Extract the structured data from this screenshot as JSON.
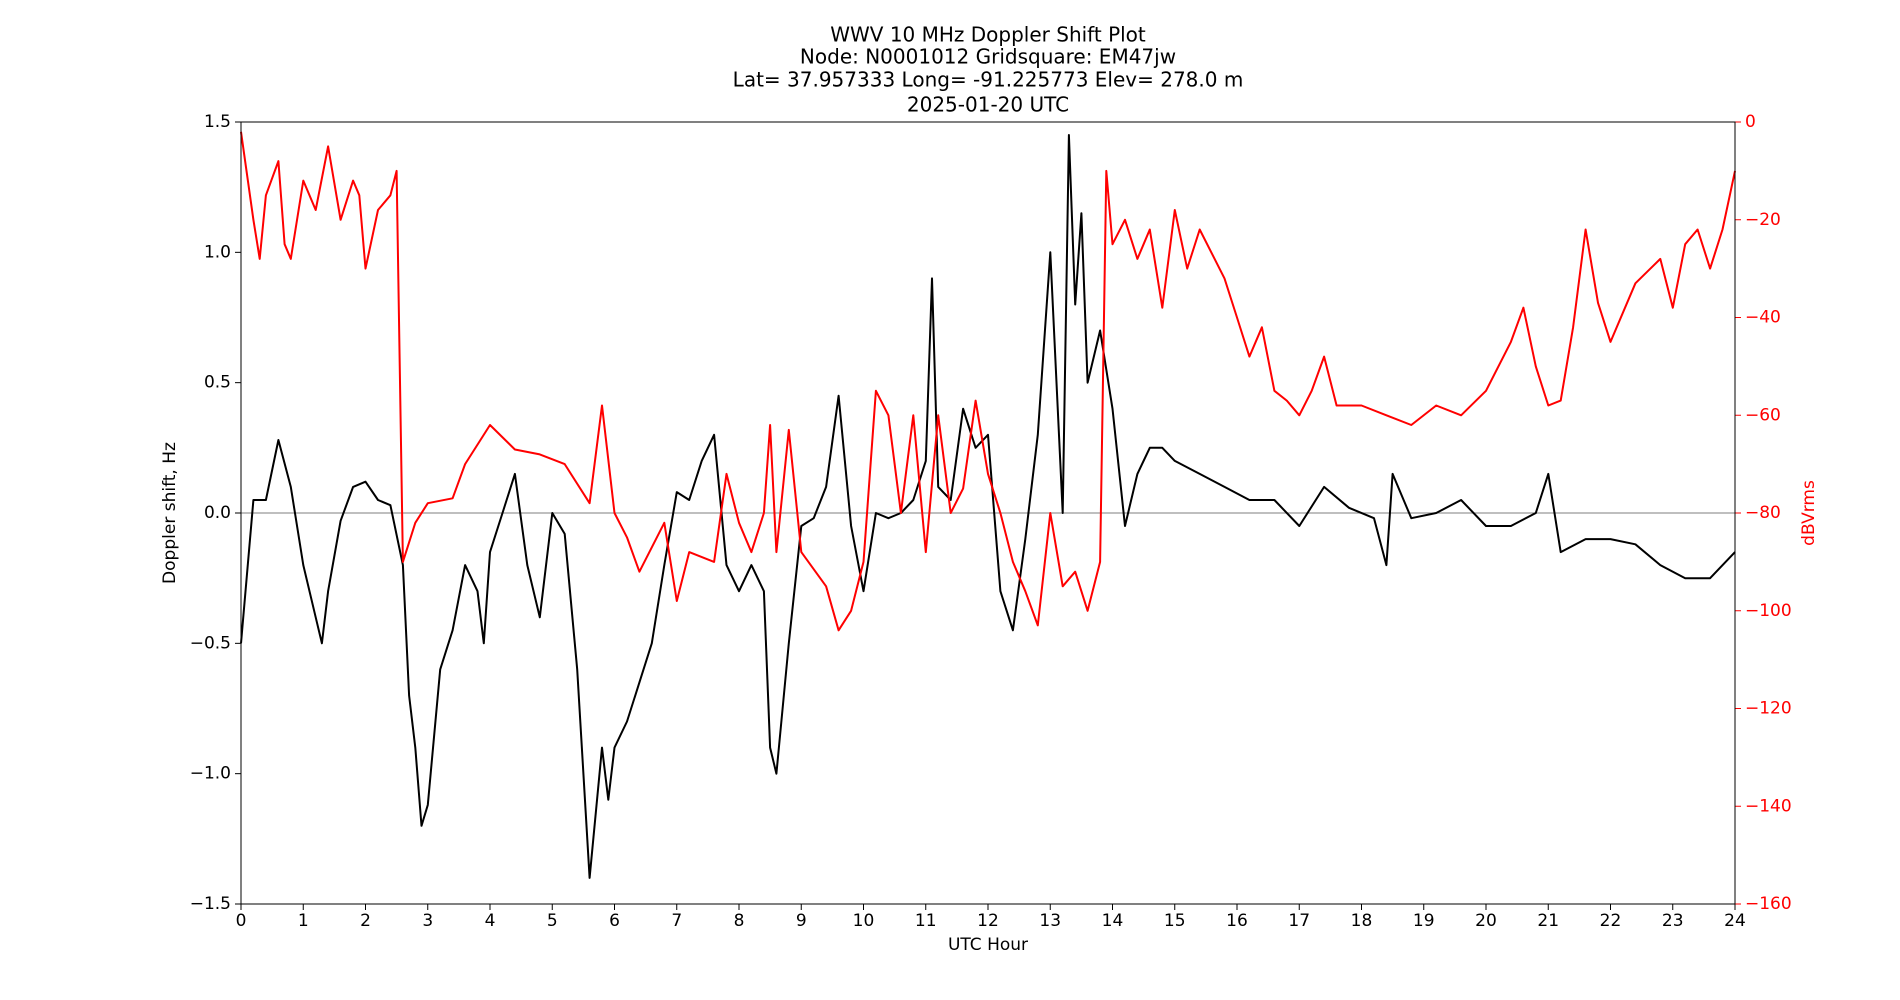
{
  "chart_data": {
    "type": "line",
    "title": [
      "WWV 10 MHz Doppler Shift Plot",
      "Node:  N0001012     Gridsquare:  EM47jw",
      "Lat= 37.957333    Long= -91.225773    Elev= 278.0 m",
      "2025-01-20  UTC"
    ],
    "xlabel": "UTC Hour",
    "ylabel": "Doppler shift, Hz",
    "y2label": "dBVrms",
    "xlim": [
      0,
      24
    ],
    "xticks": [
      0,
      1,
      2,
      3,
      4,
      5,
      6,
      7,
      8,
      9,
      10,
      11,
      12,
      13,
      14,
      15,
      16,
      17,
      18,
      19,
      20,
      21,
      22,
      23,
      24
    ],
    "ylim": [
      -1.5,
      1.5
    ],
    "yticks": [
      {
        "value": -1.5,
        "label": "−1.5"
      },
      {
        "value": -1.0,
        "label": "−1.0"
      },
      {
        "value": -0.5,
        "label": "−0.5"
      },
      {
        "value": 0,
        "label": "0.0"
      },
      0.5,
      {
        "value": 1.0,
        "label": "1.0"
      },
      1.5
    ],
    "y2lim": [
      -160,
      0
    ],
    "y2ticks": [
      {
        "value": -160,
        "label": "−160"
      },
      {
        "value": -140,
        "label": "−140"
      },
      {
        "value": -120,
        "label": "−120"
      },
      {
        "value": -100,
        "label": "−100"
      },
      {
        "value": -80,
        "label": "−80"
      },
      {
        "value": -60,
        "label": "−60"
      },
      {
        "value": -40,
        "label": "−40"
      },
      {
        "value": -20,
        "label": "−20"
      },
      0
    ],
    "y2color": "#ff0000",
    "zero_line": true,
    "series": [
      {
        "color": "#000000",
        "axis": "y",
        "x": [
          0,
          0.2,
          0.4,
          0.6,
          0.8,
          1.0,
          1.2,
          1.3,
          1.4,
          1.6,
          1.8,
          2.0,
          2.2,
          2.4,
          2.6,
          2.7,
          2.8,
          2.9,
          3.0,
          3.2,
          3.4,
          3.6,
          3.8,
          3.9,
          4.0,
          4.2,
          4.4,
          4.6,
          4.8,
          5.0,
          5.2,
          5.4,
          5.6,
          5.8,
          5.9,
          6.0,
          6.2,
          6.4,
          6.6,
          6.8,
          7.0,
          7.2,
          7.4,
          7.6,
          7.8,
          8.0,
          8.2,
          8.4,
          8.5,
          8.6,
          8.8,
          9.0,
          9.2,
          9.4,
          9.6,
          9.8,
          10.0,
          10.2,
          10.4,
          10.6,
          10.8,
          11.0,
          11.1,
          11.2,
          11.4,
          11.6,
          11.8,
          12.0,
          12.2,
          12.4,
          12.6,
          12.8,
          13.0,
          13.2,
          13.3,
          13.4,
          13.5,
          13.6,
          13.8,
          14.0,
          14.2,
          14.4,
          14.6,
          14.8,
          15.0,
          15.4,
          15.8,
          16.2,
          16.6,
          17.0,
          17.4,
          17.8,
          18.2,
          18.4,
          18.5,
          18.8,
          19.2,
          19.6,
          20.0,
          20.4,
          20.8,
          21.0,
          21.2,
          21.6,
          22.0,
          22.4,
          22.8,
          23.2,
          23.6,
          24.0
        ],
        "values": [
          -0.5,
          0.05,
          0.05,
          0.28,
          0.1,
          -0.2,
          -0.4,
          -0.5,
          -0.3,
          -0.03,
          0.1,
          0.12,
          0.05,
          0.03,
          -0.2,
          -0.7,
          -0.9,
          -1.2,
          -1.12,
          -0.6,
          -0.45,
          -0.2,
          -0.3,
          -0.5,
          -0.15,
          0.0,
          0.15,
          -0.2,
          -0.4,
          0.0,
          -0.08,
          -0.6,
          -1.4,
          -0.9,
          -1.1,
          -0.9,
          -0.8,
          -0.65,
          -0.5,
          -0.2,
          0.08,
          0.05,
          0.2,
          0.3,
          -0.2,
          -0.3,
          -0.2,
          -0.3,
          -0.9,
          -1.0,
          -0.5,
          -0.05,
          -0.02,
          0.1,
          0.45,
          -0.05,
          -0.3,
          0.0,
          -0.02,
          0.0,
          0.05,
          0.2,
          0.9,
          0.1,
          0.05,
          0.4,
          0.25,
          0.3,
          -0.3,
          -0.45,
          -0.1,
          0.3,
          1.0,
          0.0,
          1.45,
          0.8,
          1.15,
          0.5,
          0.7,
          0.4,
          -0.05,
          0.15,
          0.25,
          0.25,
          0.2,
          0.15,
          0.1,
          0.05,
          0.05,
          -0.05,
          0.1,
          0.02,
          -0.02,
          -0.2,
          0.15,
          -0.02,
          0.0,
          0.05,
          -0.05,
          -0.05,
          0.0,
          0.15,
          -0.15,
          -0.1,
          -0.1,
          -0.12,
          -0.2,
          -0.25,
          -0.25,
          -0.15
        ]
      },
      {
        "color": "#ff0000",
        "axis": "y2",
        "x": [
          0,
          0.2,
          0.3,
          0.4,
          0.6,
          0.7,
          0.8,
          1.0,
          1.2,
          1.4,
          1.6,
          1.8,
          1.9,
          2.0,
          2.2,
          2.4,
          2.5,
          2.6,
          2.8,
          3.0,
          3.4,
          3.6,
          4.0,
          4.4,
          4.8,
          5.2,
          5.6,
          5.8,
          6.0,
          6.2,
          6.4,
          6.8,
          7.0,
          7.2,
          7.6,
          7.8,
          8.0,
          8.2,
          8.4,
          8.5,
          8.6,
          8.8,
          9.0,
          9.4,
          9.6,
          9.8,
          10.0,
          10.2,
          10.4,
          10.6,
          10.8,
          11.0,
          11.2,
          11.4,
          11.6,
          11.8,
          12.0,
          12.2,
          12.4,
          12.6,
          12.8,
          13.0,
          13.2,
          13.4,
          13.6,
          13.8,
          13.9,
          14.0,
          14.2,
          14.4,
          14.6,
          14.8,
          15.0,
          15.2,
          15.4,
          15.8,
          16.0,
          16.2,
          16.4,
          16.6,
          16.8,
          17.0,
          17.2,
          17.4,
          17.6,
          18.0,
          18.4,
          18.8,
          19.2,
          19.6,
          20.0,
          20.4,
          20.6,
          20.8,
          21.0,
          21.2,
          21.4,
          21.6,
          21.8,
          22.0,
          22.4,
          22.8,
          23.0,
          23.2,
          23.4,
          23.6,
          23.8,
          24.0
        ],
        "values": [
          -2,
          -20,
          -28,
          -15,
          -8,
          -25,
          -28,
          -12,
          -18,
          -5,
          -20,
          -12,
          -15,
          -30,
          -18,
          -15,
          -10,
          -90,
          -82,
          -78,
          -77,
          -70,
          -62,
          -67,
          -68,
          -70,
          -78,
          -58,
          -80,
          -85,
          -92,
          -82,
          -98,
          -88,
          -90,
          -72,
          -82,
          -88,
          -80,
          -62,
          -88,
          -63,
          -88,
          -95,
          -104,
          -100,
          -90,
          -55,
          -60,
          -80,
          -60,
          -88,
          -60,
          -80,
          -75,
          -57,
          -72,
          -80,
          -90,
          -96,
          -103,
          -80,
          -95,
          -92,
          -100,
          -90,
          -10,
          -25,
          -20,
          -28,
          -22,
          -38,
          -18,
          -30,
          -22,
          -32,
          -40,
          -48,
          -42,
          -55,
          -57,
          -60,
          -55,
          -48,
          -58,
          -58,
          -60,
          -62,
          -58,
          -60,
          -55,
          -45,
          -38,
          -50,
          -58,
          -57,
          -42,
          -22,
          -37,
          -45,
          -33,
          -28,
          -38,
          -25,
          -22,
          -30,
          -22,
          -10
        ]
      }
    ]
  }
}
